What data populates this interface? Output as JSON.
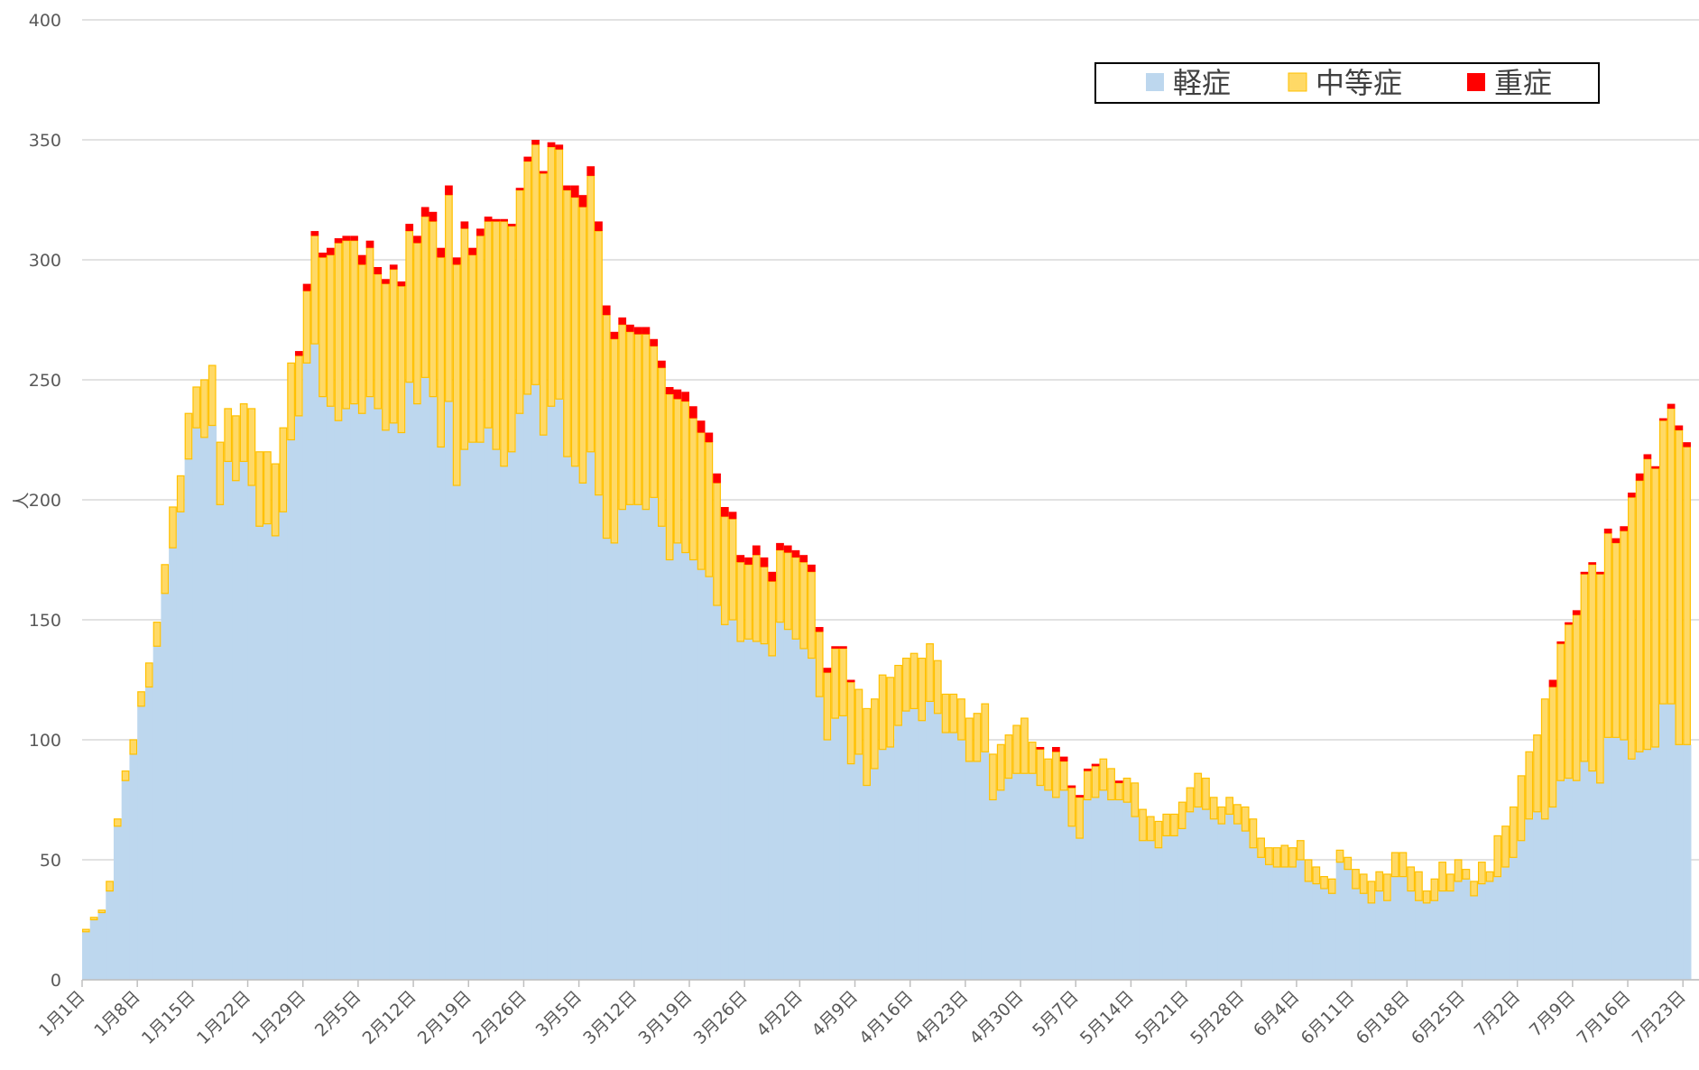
{
  "chart_data": {
    "type": "stacked_bar",
    "y_label": "人",
    "categories": [
      "1月1日",
      null,
      null,
      null,
      null,
      null,
      null,
      "1月8日",
      null,
      null,
      null,
      null,
      null,
      null,
      "1月15日",
      null,
      null,
      null,
      null,
      null,
      null,
      "1月22日",
      null,
      null,
      null,
      null,
      null,
      null,
      "1月29日",
      null,
      null,
      null,
      null,
      null,
      null,
      "2月5日",
      null,
      null,
      null,
      null,
      null,
      null,
      "2月12日",
      null,
      null,
      null,
      null,
      null,
      null,
      "2月19日",
      null,
      null,
      null,
      null,
      null,
      null,
      "2月26日",
      null,
      null,
      null,
      null,
      null,
      null,
      "3月5日",
      null,
      null,
      null,
      null,
      null,
      null,
      "3月12日",
      null,
      null,
      null,
      null,
      null,
      null,
      "3月19日",
      null,
      null,
      null,
      null,
      null,
      null,
      "3月26日",
      null,
      null,
      null,
      null,
      null,
      null,
      "4月2日",
      null,
      null,
      null,
      null,
      null,
      null,
      "4月9日",
      null,
      null,
      null,
      null,
      null,
      null,
      "4月16日",
      null,
      null,
      null,
      null,
      null,
      null,
      "4月23日",
      null,
      null,
      null,
      null,
      null,
      null,
      "4月30日",
      null,
      null,
      null,
      null,
      null,
      null,
      "5月7日",
      null,
      null,
      null,
      null,
      null,
      null,
      "5月14日",
      null,
      null,
      null,
      null,
      null,
      null,
      "5月21日",
      null,
      null,
      null,
      null,
      null,
      null,
      "5月28日",
      null,
      null,
      null,
      null,
      null,
      null,
      "6月4日",
      null,
      null,
      null,
      null,
      null,
      null,
      "6月11日",
      null,
      null,
      null,
      null,
      null,
      null,
      "6月18日",
      null,
      null,
      null,
      null,
      null,
      null,
      "6月25日",
      null,
      null,
      null,
      null,
      null,
      null,
      "7月2日",
      null,
      null,
      null,
      null,
      null,
      null,
      "7月9日",
      null,
      null,
      null,
      null,
      null,
      null,
      "7月16日",
      null,
      null,
      null,
      null,
      null,
      null,
      "7月23日"
    ],
    "series": [
      {
        "name": "軽症",
        "color": "#bdd7ee",
        "values": [
          20,
          25,
          28,
          37,
          64,
          83,
          94,
          114,
          122,
          139,
          161,
          180,
          195,
          217,
          230,
          226,
          231,
          198,
          216,
          208,
          216,
          206,
          189,
          190,
          185,
          195,
          225,
          235,
          257,
          265,
          243,
          239,
          233,
          238,
          240,
          236,
          243,
          238,
          229,
          232,
          228,
          249,
          240,
          251,
          243,
          222,
          241,
          206,
          221,
          224,
          224,
          230,
          221,
          214,
          220,
          236,
          244,
          248,
          227,
          239,
          242,
          218,
          214,
          207,
          220,
          202,
          184,
          182,
          196,
          198,
          198,
          196,
          201,
          189,
          175,
          182,
          178,
          175,
          171,
          168,
          156,
          148,
          150,
          141,
          142,
          141,
          140,
          135,
          149,
          146,
          142,
          138,
          134,
          118,
          100,
          109,
          110,
          90,
          94,
          81,
          88,
          96,
          97,
          106,
          112,
          113,
          108,
          116,
          111,
          103,
          103,
          100,
          91,
          91,
          95,
          75,
          79,
          84,
          86,
          86,
          86,
          81,
          79,
          76,
          79,
          64,
          59,
          75,
          76,
          79,
          75,
          75,
          74,
          68,
          58,
          58,
          55,
          60,
          60,
          63,
          70,
          72,
          71,
          67,
          65,
          69,
          65,
          62,
          55,
          51,
          48,
          47,
          47,
          47,
          50,
          41,
          40,
          38,
          36,
          49,
          46,
          38,
          36,
          32,
          37,
          33,
          43,
          43,
          37,
          33,
          32,
          33,
          37,
          37,
          41,
          42,
          35,
          40,
          41,
          43,
          47,
          51,
          58,
          67,
          70,
          67,
          72,
          83,
          84,
          83,
          91,
          87,
          82,
          101,
          101,
          100,
          92,
          95,
          96,
          97,
          115,
          115,
          98,
          98
        ]
      },
      {
        "name": "中等症",
        "color": "#ffd966",
        "values": [
          1,
          1,
          1,
          4,
          3,
          4,
          6,
          6,
          10,
          10,
          12,
          17,
          15,
          19,
          17,
          24,
          25,
          26,
          22,
          27,
          24,
          32,
          31,
          30,
          30,
          35,
          32,
          25,
          30,
          45,
          58,
          63,
          74,
          70,
          68,
          62,
          62,
          56,
          61,
          64,
          61,
          63,
          67,
          67,
          73,
          79,
          86,
          92,
          92,
          78,
          86,
          86,
          95,
          102,
          94,
          93,
          97,
          100,
          109,
          108,
          104,
          111,
          112,
          115,
          115,
          110,
          93,
          85,
          77,
          72,
          71,
          73,
          63,
          66,
          69,
          60,
          63,
          59,
          57,
          56,
          51,
          45,
          42,
          33,
          31,
          36,
          32,
          31,
          30,
          32,
          34,
          36,
          36,
          27,
          28,
          29,
          28,
          34,
          27,
          32,
          29,
          31,
          29,
          25,
          22,
          23,
          26,
          24,
          22,
          16,
          16,
          17,
          18,
          20,
          20,
          19,
          19,
          18,
          20,
          23,
          13,
          15,
          13,
          19,
          12,
          16,
          17,
          12,
          13,
          13,
          13,
          7,
          10,
          14,
          13,
          10,
          11,
          9,
          9,
          11,
          10,
          14,
          13,
          9,
          7,
          7,
          8,
          10,
          12,
          8,
          7,
          8,
          9,
          8,
          8,
          9,
          7,
          5,
          6,
          5,
          5,
          8,
          8,
          9,
          8,
          11,
          10,
          10,
          10,
          12,
          5,
          9,
          12,
          7,
          9,
          4,
          6,
          9,
          4,
          17,
          17,
          21,
          27,
          28,
          32,
          50,
          50,
          57,
          64,
          69,
          78,
          86,
          87,
          85,
          81,
          87,
          109,
          113,
          121,
          116,
          118,
          123,
          131,
          124
        ]
      },
      {
        "name": "重症",
        "color": "#ff0000",
        "values": [
          0,
          0,
          0,
          0,
          0,
          0,
          0,
          0,
          0,
          0,
          0,
          0,
          0,
          0,
          0,
          0,
          0,
          0,
          0,
          0,
          0,
          0,
          0,
          0,
          0,
          0,
          0,
          2,
          3,
          2,
          2,
          3,
          2,
          2,
          2,
          4,
          3,
          3,
          2,
          2,
          2,
          3,
          3,
          4,
          4,
          4,
          4,
          3,
          3,
          3,
          3,
          2,
          1,
          1,
          1,
          1,
          2,
          2,
          1,
          2,
          2,
          2,
          5,
          5,
          4,
          4,
          4,
          3,
          3,
          3,
          3,
          3,
          3,
          3,
          3,
          4,
          4,
          5,
          5,
          4,
          4,
          4,
          3,
          3,
          3,
          4,
          4,
          4,
          3,
          3,
          3,
          3,
          3,
          2,
          2,
          1,
          1,
          1,
          0,
          0,
          0,
          0,
          0,
          0,
          0,
          0,
          0,
          0,
          0,
          0,
          0,
          0,
          0,
          0,
          0,
          0,
          0,
          0,
          0,
          0,
          0,
          1,
          0,
          2,
          2,
          1,
          1,
          1,
          1,
          0,
          0,
          1,
          0,
          0,
          0,
          0,
          0,
          0,
          0,
          0,
          0,
          0,
          0,
          0,
          0,
          0,
          0,
          0,
          0,
          0,
          0,
          0,
          0,
          0,
          0,
          0,
          0,
          0,
          0,
          0,
          0,
          0,
          0,
          0,
          0,
          0,
          0,
          0,
          0,
          0,
          0,
          0,
          0,
          0,
          0,
          0,
          0,
          0,
          0,
          0,
          0,
          0,
          0,
          0,
          0,
          0,
          3,
          1,
          1,
          2,
          1,
          1,
          1,
          2,
          2,
          2,
          2,
          3,
          2,
          1,
          1,
          2,
          2,
          2
        ]
      }
    ],
    "ylim": [
      0,
      400
    ],
    "yticks": [
      0,
      50,
      100,
      150,
      200,
      250,
      300,
      350,
      400
    ],
    "grid": true,
    "legend": "top-right"
  }
}
